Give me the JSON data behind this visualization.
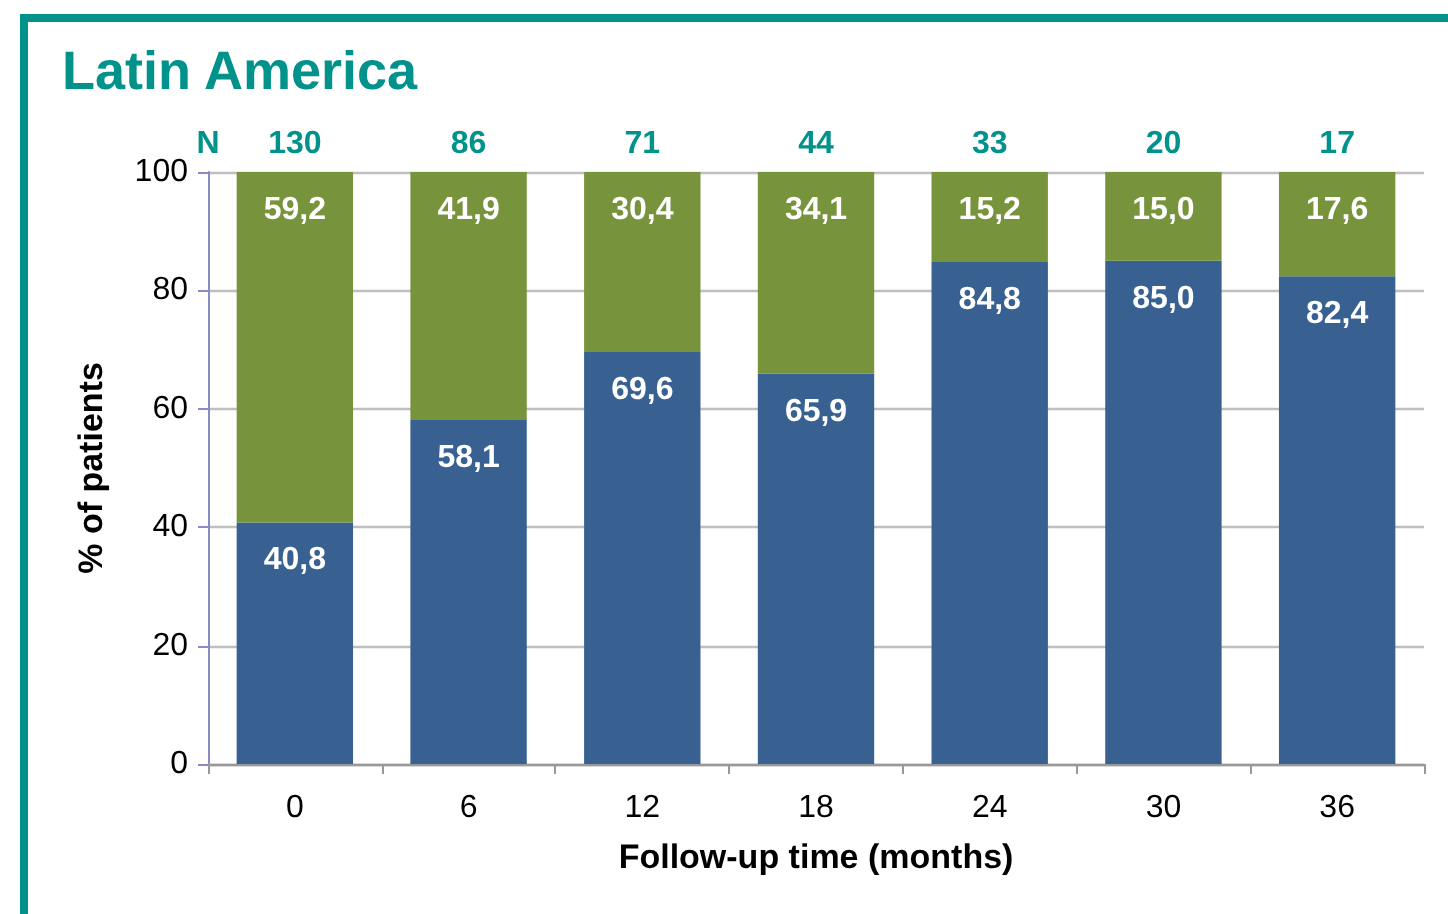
{
  "chart_data": {
    "type": "bar",
    "title": "Latin America",
    "xlabel": "Follow-up time (months)",
    "ylabel": "% of patients",
    "categories": [
      "0",
      "6",
      "12",
      "18",
      "24",
      "30",
      "36"
    ],
    "stacked": true,
    "series": [
      {
        "color": "#386192",
        "values": [
          40.8,
          58.1,
          69.6,
          65.9,
          84.8,
          85.0,
          82.4
        ],
        "value_labels": [
          "40,8",
          "58,1",
          "69,6",
          "65,9",
          "84,8",
          "85,0",
          "82,4"
        ]
      },
      {
        "color": "#77933c",
        "values": [
          59.2,
          41.9,
          30.4,
          34.1,
          15.2,
          15.0,
          17.6
        ],
        "value_labels": [
          "59,2",
          "41,9",
          "30,4",
          "34,1",
          "15,2",
          "15,0",
          "17,6"
        ]
      }
    ],
    "ylim": [
      0,
      100
    ],
    "yticks": [
      0,
      20,
      40,
      60,
      80,
      100
    ],
    "grid": "y",
    "annotations": [
      "N",
      {
        "text": "130",
        "x": "0",
        "y": 100
      },
      {
        "text": "86",
        "x": "6",
        "y": 100
      },
      {
        "text": "71",
        "x": "12",
        "y": 100
      },
      {
        "text": "44",
        "x": "18",
        "y": 100
      },
      {
        "text": "33",
        "x": "24",
        "y": 100
      },
      {
        "text": "20",
        "x": "30",
        "y": 100
      },
      {
        "text": "17",
        "x": "36",
        "y": 100
      }
    ]
  }
}
